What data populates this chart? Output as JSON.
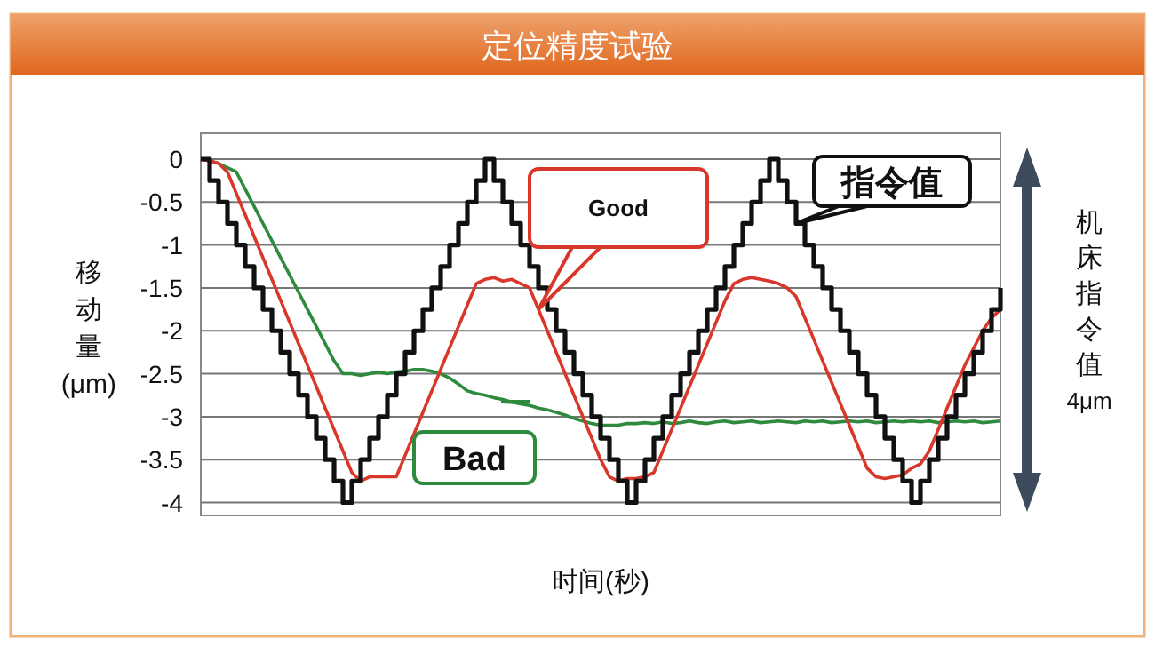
{
  "chart_data": {
    "type": "line",
    "title": "定位精度试验",
    "xlabel": "时间(秒)",
    "ylabel": "移动量(μm)",
    "categories": [
      null,
      null,
      null,
      null,
      null,
      null,
      null,
      null,
      null,
      null,
      null,
      null,
      null,
      null,
      null,
      null,
      null,
      null,
      null,
      null,
      null,
      null,
      null,
      null,
      null,
      null,
      null,
      null,
      null,
      null,
      null,
      null,
      null,
      null,
      null,
      null,
      null,
      null,
      null,
      null,
      null,
      null,
      null,
      null,
      null,
      null,
      null,
      null,
      null,
      null,
      null,
      null,
      null,
      null,
      null,
      null,
      null,
      null,
      null,
      null,
      null,
      null,
      null,
      null,
      null,
      null,
      null,
      null,
      null,
      null,
      null,
      null,
      null,
      null,
      null,
      null,
      null,
      null,
      null,
      null,
      null,
      null,
      null,
      null,
      null,
      null,
      null,
      null,
      null,
      null,
      null
    ],
    "ylim": [
      -4.15,
      0.3
    ],
    "yticks": [
      0,
      -0.5,
      -1,
      -1.5,
      -2,
      -2.5,
      -3,
      -3.5,
      -4
    ],
    "grid": "y",
    "annotations": [
      "机床指令值4μm"
    ],
    "series": [
      {
        "name": "Bad",
        "color": "#2e8b3e",
        "values": [
          0,
          -0.02,
          -0.05,
          -0.1,
          -0.15,
          -0.35,
          -0.55,
          -0.75,
          -0.95,
          -1.15,
          -1.35,
          -1.55,
          -1.75,
          -1.95,
          -2.15,
          -2.35,
          -2.5,
          -2.5,
          -2.52,
          -2.5,
          -2.48,
          -2.5,
          -2.48,
          -2.47,
          -2.45,
          -2.45,
          -2.47,
          -2.5,
          -2.55,
          -2.62,
          -2.7,
          -2.73,
          -2.75,
          -2.78,
          -2.8,
          -2.83,
          -2.85,
          -2.87,
          -2.9,
          -2.92,
          -2.95,
          -2.98,
          -3.02,
          -3.05,
          -3.08,
          -3.1,
          -3.1,
          -3.1,
          -3.08,
          -3.08,
          -3.07,
          -3.08,
          -3.06,
          -3.08,
          -3.07,
          -3.05,
          -3.07,
          -3.08,
          -3.06,
          -3.05,
          -3.07,
          -3.06,
          -3.05,
          -3.07,
          -3.06,
          -3.05,
          -3.06,
          -3.07,
          -3.05,
          -3.06,
          -3.05,
          -3.07,
          -3.06,
          -3.05,
          -3.06,
          -3.05,
          -3.07,
          -3.06,
          -3.05,
          -3.06,
          -3.05,
          -3.06,
          -3.05,
          -3.07,
          -3.06,
          -3.05,
          -3.06,
          -3.05,
          -3.07,
          -3.06,
          -3.05
        ]
      },
      {
        "name": "Good",
        "color": "#d9372a",
        "values": [
          0,
          -0.02,
          -0.05,
          -0.15,
          -0.4,
          -0.65,
          -0.9,
          -1.15,
          -1.4,
          -1.65,
          -1.9,
          -2.15,
          -2.4,
          -2.65,
          -2.9,
          -3.15,
          -3.4,
          -3.65,
          -3.75,
          -3.7,
          -3.7,
          -3.7,
          -3.7,
          -3.45,
          -3.2,
          -2.95,
          -2.7,
          -2.45,
          -2.2,
          -1.95,
          -1.7,
          -1.45,
          -1.4,
          -1.38,
          -1.42,
          -1.4,
          -1.45,
          -1.5,
          -1.75,
          -2,
          -2.25,
          -2.5,
          -2.75,
          -3,
          -3.25,
          -3.5,
          -3.7,
          -3.75,
          -3.72,
          -3.72,
          -3.7,
          -3.65,
          -3.4,
          -3.15,
          -2.9,
          -2.65,
          -2.4,
          -2.15,
          -1.9,
          -1.65,
          -1.45,
          -1.4,
          -1.38,
          -1.4,
          -1.42,
          -1.45,
          -1.5,
          -1.6,
          -1.85,
          -2.1,
          -2.35,
          -2.6,
          -2.85,
          -3.1,
          -3.35,
          -3.6,
          -3.7,
          -3.72,
          -3.7,
          -3.68,
          -3.6,
          -3.55,
          -3.4,
          -3.15,
          -2.9,
          -2.65,
          -2.4,
          -2.2,
          -2,
          -1.85,
          -1.75
        ]
      },
      {
        "name": "指令值",
        "type": "step",
        "color": "#111111",
        "values": [
          0,
          -0.25,
          -0.5,
          -0.75,
          -1,
          -1.25,
          -1.5,
          -1.75,
          -2,
          -2.25,
          -2.5,
          -2.75,
          -3,
          -3.25,
          -3.5,
          -3.75,
          -4,
          -3.75,
          -3.5,
          -3.25,
          -3,
          -2.75,
          -2.5,
          -2.25,
          -2,
          -1.75,
          -1.5,
          -1.25,
          -1,
          -0.75,
          -0.5,
          -0.25,
          0,
          -0.25,
          -0.5,
          -0.75,
          -1,
          -1.25,
          -1.5,
          -1.75,
          -2,
          -2.25,
          -2.5,
          -2.75,
          -3,
          -3.25,
          -3.5,
          -3.75,
          -4,
          -3.75,
          -3.5,
          -3.25,
          -3,
          -2.75,
          -2.5,
          -2.25,
          -2,
          -1.75,
          -1.5,
          -1.25,
          -1,
          -0.75,
          -0.5,
          -0.25,
          0,
          -0.25,
          -0.5,
          -0.75,
          -1,
          -1.25,
          -1.5,
          -1.75,
          -2,
          -2.25,
          -2.5,
          -2.75,
          -3,
          -3.25,
          -3.5,
          -3.75,
          -4,
          -3.75,
          -3.5,
          -3.25,
          -3,
          -2.75,
          -2.5,
          -2.25,
          -2,
          -1.75,
          -1.5
        ]
      }
    ]
  }
}
